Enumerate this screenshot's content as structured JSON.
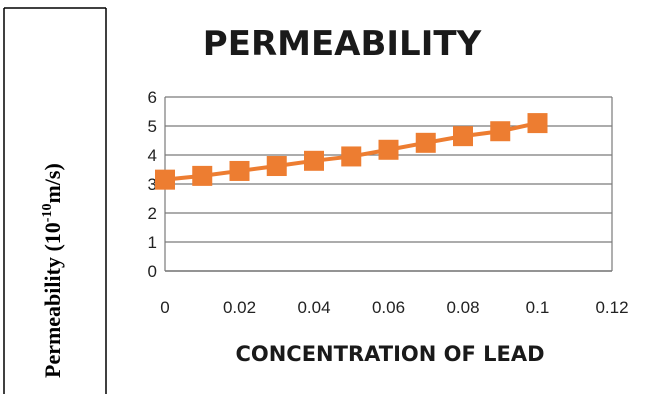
{
  "ylabel_panel": {
    "text_main": "Permeability (10",
    "text_sup": "-10",
    "text_end": "m/s)"
  },
  "chart_data": {
    "type": "line",
    "title": "PERMEABILITY",
    "xlabel": "CONCENTRATION OF LEAD",
    "ylabel": "Permeability (10-10m/s)",
    "xlim": [
      0,
      0.12
    ],
    "ylim": [
      0,
      6
    ],
    "x_ticks": [
      "0",
      "0.02",
      "0.04",
      "0.06",
      "0.08",
      "0.1",
      "0.12"
    ],
    "y_ticks": [
      "0",
      "1",
      "2",
      "3",
      "4",
      "5",
      "6"
    ],
    "grid": "horizontal",
    "marker": "square",
    "color": "#ed7d31",
    "series": [
      {
        "x": [
          0,
          0.01,
          0.02,
          0.03,
          0.04,
          0.05,
          0.06,
          0.07,
          0.08,
          0.09,
          0.1
        ],
        "y": [
          3.15,
          3.28,
          3.45,
          3.62,
          3.8,
          3.95,
          4.18,
          4.42,
          4.65,
          4.82,
          5.1
        ]
      }
    ]
  }
}
